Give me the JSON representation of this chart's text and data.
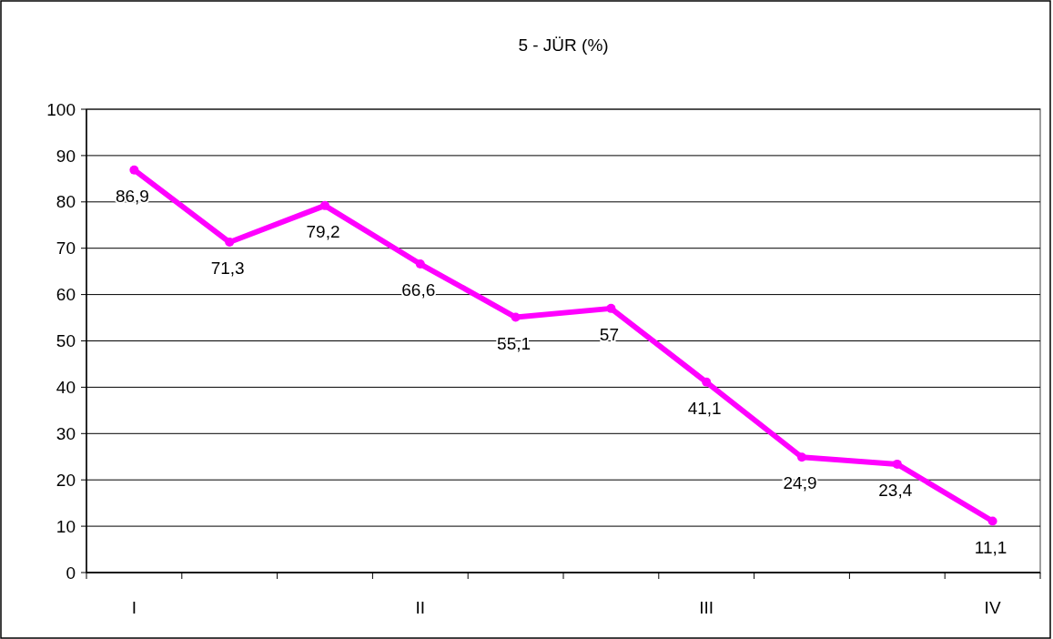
{
  "chart_data": {
    "type": "line",
    "title": "5 - JÜR (%)",
    "categories": [
      "I",
      null,
      null,
      "II",
      null,
      null,
      "III",
      null,
      null,
      "IV"
    ],
    "series": [
      {
        "color": "#ff00ff",
        "values": [
          86.9,
          71.3,
          79.2,
          66.6,
          55.1,
          57,
          41.1,
          24.9,
          23.4,
          11.1
        ],
        "value_labels": [
          "86,9",
          "71,3",
          "79,2",
          "66,6",
          "55,1",
          "57",
          "41,1",
          "24,9",
          "23,4",
          "11,1"
        ]
      }
    ],
    "ylim": [
      0,
      100
    ],
    "yticks": [
      0,
      10,
      20,
      30,
      40,
      50,
      60,
      70,
      80,
      90,
      100
    ],
    "grid": "y",
    "marker": "circle"
  }
}
